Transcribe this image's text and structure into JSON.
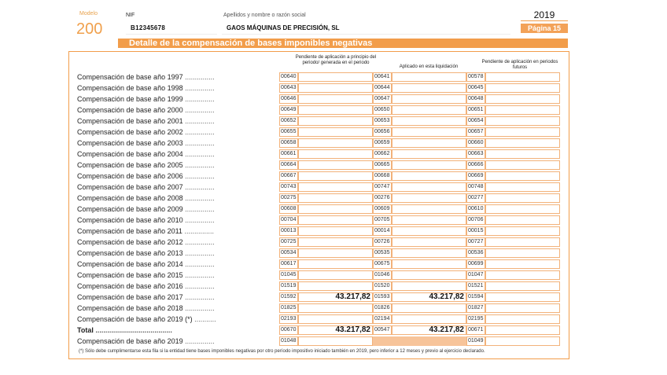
{
  "header": {
    "modelo_label": "Modelo",
    "modelo_num": "200",
    "nif_label": "NIF",
    "nif_value": "B12345678",
    "razon_label": "Apellidos y nombre o razón social",
    "razon_value": "GAOS MÁQUINAS DE PRECISIÓN, SL",
    "year": "2019",
    "pagina": "Página 15"
  },
  "section_title": "Detalle de la compensación de bases imponibles negativas",
  "columns": {
    "pendiente_inicio": "Pendiente de aplicación a principio del periodo/ generada en el periodo",
    "aplicado": "Aplicado en esta liquidación",
    "pendiente_futuros": "Pendiente de aplicación en periodos futuros"
  },
  "rows": [
    {
      "label": "Compensación de base año 1997",
      "c1": "00640",
      "c2": "00641",
      "c3": "00578",
      "v1": "",
      "v2": ""
    },
    {
      "label": "Compensación de base año 1998",
      "c1": "00643",
      "c2": "00644",
      "c3": "00645",
      "v1": "",
      "v2": ""
    },
    {
      "label": "Compensación de base año 1999",
      "c1": "00646",
      "c2": "00647",
      "c3": "00648",
      "v1": "",
      "v2": ""
    },
    {
      "label": "Compensación de base año 2000",
      "c1": "00649",
      "c2": "00650",
      "c3": "00651",
      "v1": "",
      "v2": ""
    },
    {
      "label": "Compensación de base año 2001",
      "c1": "00652",
      "c2": "00653",
      "c3": "00654",
      "v1": "",
      "v2": ""
    },
    {
      "label": "Compensación de base año 2002",
      "c1": "00655",
      "c2": "00656",
      "c3": "00657",
      "v1": "",
      "v2": ""
    },
    {
      "label": "Compensación de base año 2003",
      "c1": "00658",
      "c2": "00659",
      "c3": "00660",
      "v1": "",
      "v2": ""
    },
    {
      "label": "Compensación de base año 2004",
      "c1": "00661",
      "c2": "00662",
      "c3": "00663",
      "v1": "",
      "v2": ""
    },
    {
      "label": "Compensación de base año 2005",
      "c1": "00664",
      "c2": "00665",
      "c3": "00666",
      "v1": "",
      "v2": ""
    },
    {
      "label": "Compensación de base año 2006",
      "c1": "00667",
      "c2": "00668",
      "c3": "00669",
      "v1": "",
      "v2": ""
    },
    {
      "label": "Compensación de base año 2007",
      "c1": "00743",
      "c2": "00747",
      "c3": "00748",
      "v1": "",
      "v2": ""
    },
    {
      "label": "Compensación de base año 2008",
      "c1": "00275",
      "c2": "00276",
      "c3": "00277",
      "v1": "",
      "v2": ""
    },
    {
      "label": "Compensación de base año 2009",
      "c1": "00608",
      "c2": "00609",
      "c3": "00610",
      "v1": "",
      "v2": ""
    },
    {
      "label": "Compensación de base año 2010",
      "c1": "00704",
      "c2": "00705",
      "c3": "00706",
      "v1": "",
      "v2": ""
    },
    {
      "label": "Compensación de base año 2011",
      "c1": "00013",
      "c2": "00014",
      "c3": "00015",
      "v1": "",
      "v2": ""
    },
    {
      "label": "Compensación de base año 2012",
      "c1": "00725",
      "c2": "00726",
      "c3": "00727",
      "v1": "",
      "v2": ""
    },
    {
      "label": "Compensación de base año 2013",
      "c1": "00534",
      "c2": "00535",
      "c3": "00536",
      "v1": "",
      "v2": ""
    },
    {
      "label": "Compensación de base año 2014",
      "c1": "00617",
      "c2": "00675",
      "c3": "00699",
      "v1": "",
      "v2": ""
    },
    {
      "label": "Compensación de base año 2015",
      "c1": "01045",
      "c2": "01046",
      "c3": "01047",
      "v1": "",
      "v2": ""
    },
    {
      "label": "Compensación de base año 2016",
      "c1": "01519",
      "c2": "01520",
      "c3": "01521",
      "v1": "",
      "v2": ""
    },
    {
      "label": "Compensación de base año 2017",
      "c1": "01592",
      "c2": "01593",
      "c3": "01594",
      "v1": "43.217,82",
      "v2": "43.217,82"
    },
    {
      "label": "Compensación de base año 2018",
      "c1": "01825",
      "c2": "01826",
      "c3": "01827",
      "v1": "",
      "v2": ""
    },
    {
      "label": "Compensación de base año 2019 (*)",
      "c1": "02193",
      "c2": "02194",
      "c3": "02195",
      "v1": "",
      "v2": ""
    },
    {
      "label": "Total",
      "c1": "00670",
      "c2": "00547",
      "c3": "00671",
      "v1": "43.217,82",
      "v2": "43.217,82",
      "total": true
    },
    {
      "label": "Compensación de base año 2019",
      "c1": "01048",
      "c2": "",
      "c3": "01049",
      "v1": "",
      "v2": "",
      "shaded_mid": true
    }
  ],
  "footnote": "(*) Sólo debe cumplimentarse esta fila si la entidad tiene bases imponibles negativas por otro período impositivo iniciado también en 2019, pero inferior a 12 meses y previo al ejercicio declarado."
}
